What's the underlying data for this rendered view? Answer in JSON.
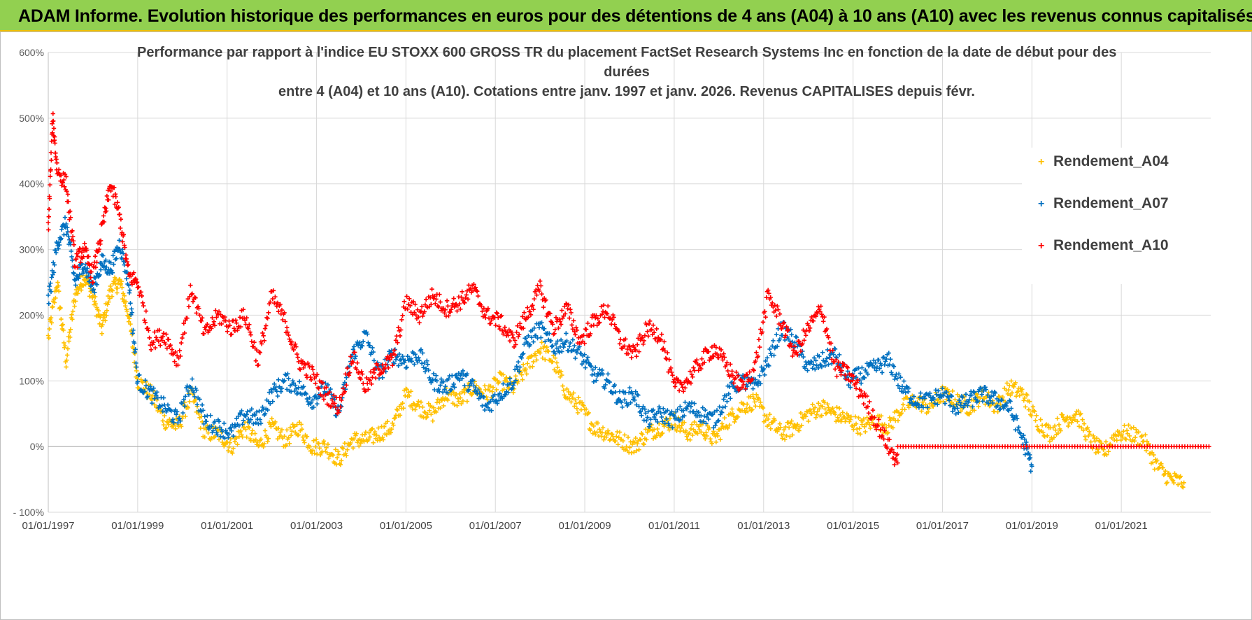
{
  "header": {
    "title": "ADAM Informe. Evolution historique des performances en euros pour des détentions de 4 ans (A04) à 10 ans (A10) avec les revenus connus capitalisés",
    "background": "#92d050",
    "border": "#f0c000"
  },
  "chart_data": {
    "type": "scatter",
    "title_lines": [
      "Performance par rapport à l'indice EU STOXX 600 GROSS TR  du placement FactSet Research Systems Inc en fonction de la date de début pour des",
      "durées",
      "entre 4 (A04) et 10 ans (A10).  Cotations entre janv. 1997 et janv. 2026. Revenus CAPITALISES depuis févr."
    ],
    "xlabel": "",
    "ylabel": "",
    "xlim": [
      1997.0,
      2023.0
    ],
    "ylim": [
      -100,
      600
    ],
    "yticks": [
      -100,
      0,
      100,
      200,
      300,
      400,
      500,
      600
    ],
    "ytick_labels": [
      "- 100%",
      "0%",
      "100%",
      "200%",
      "300%",
      "400%",
      "500%",
      "600%"
    ],
    "xticks": [
      1997,
      1999,
      2001,
      2003,
      2005,
      2007,
      2009,
      2011,
      2013,
      2015,
      2017,
      2019,
      2021
    ],
    "xtick_labels": [
      "01/01/1997",
      "01/01/1999",
      "01/01/2001",
      "01/01/2003",
      "01/01/2005",
      "01/01/2007",
      "01/01/2009",
      "01/01/2011",
      "01/01/2013",
      "01/01/2015",
      "01/01/2017",
      "01/01/2019",
      "01/01/2021"
    ],
    "grid": true,
    "legend_position": "right",
    "series": [
      {
        "name": "Rendement_A04",
        "color": "#ffc000",
        "x": [
          1997.0,
          1997.2,
          1997.4,
          1997.6,
          1997.8,
          1998.0,
          1998.2,
          1998.4,
          1998.6,
          1998.8,
          1999.0,
          1999.3,
          1999.6,
          1999.9,
          2000.2,
          2000.5,
          2000.8,
          2001.1,
          2001.4,
          2001.7,
          2002.0,
          2002.3,
          2002.6,
          2002.9,
          2003.2,
          2003.5,
          2003.8,
          2004.1,
          2004.4,
          2004.7,
          2005.0,
          2005.3,
          2005.6,
          2005.9,
          2006.2,
          2006.5,
          2006.8,
          2007.1,
          2007.4,
          2007.7,
          2008.0,
          2008.3,
          2008.6,
          2008.9,
          2009.2,
          2009.5,
          2009.8,
          2010.1,
          2010.4,
          2010.7,
          2011.0,
          2011.3,
          2011.6,
          2011.9,
          2012.2,
          2012.5,
          2012.8,
          2013.1,
          2013.4,
          2013.7,
          2014.0,
          2014.3,
          2014.6,
          2014.9,
          2015.2,
          2015.5,
          2015.8,
          2016.1,
          2016.4,
          2016.7,
          2017.0,
          2017.3,
          2017.6,
          2017.9,
          2018.2,
          2018.5,
          2018.8,
          2019.1,
          2019.4,
          2019.7,
          2020.0,
          2020.3,
          2020.6,
          2020.9,
          2021.2,
          2021.5,
          2021.8,
          2022.1,
          2022.4
        ],
        "y": [
          165,
          250,
          130,
          230,
          260,
          230,
          180,
          240,
          250,
          200,
          100,
          80,
          40,
          30,
          80,
          20,
          20,
          0,
          30,
          0,
          30,
          10,
          30,
          0,
          0,
          -20,
          10,
          10,
          20,
          30,
          80,
          60,
          50,
          80,
          70,
          90,
          80,
          100,
          90,
          120,
          150,
          130,
          80,
          60,
          30,
          20,
          10,
          0,
          20,
          30,
          40,
          20,
          30,
          10,
          40,
          60,
          70,
          40,
          20,
          30,
          50,
          60,
          50,
          40,
          30,
          40,
          30,
          60,
          70,
          60,
          80,
          70,
          60,
          80,
          60,
          90,
          80,
          40,
          20,
          40,
          50,
          10,
          -10,
          20,
          20,
          10,
          -30,
          -50,
          -55
        ]
      },
      {
        "name": "Rendement_A07",
        "color": "#0070c0",
        "x": [
          1997.0,
          1997.2,
          1997.4,
          1997.6,
          1997.8,
          1998.0,
          1998.2,
          1998.4,
          1998.6,
          1998.8,
          1999.0,
          1999.3,
          1999.6,
          1999.9,
          2000.2,
          2000.5,
          2000.8,
          2001.1,
          2001.4,
          2001.7,
          2002.0,
          2002.3,
          2002.6,
          2002.9,
          2003.2,
          2003.5,
          2003.8,
          2004.1,
          2004.4,
          2004.7,
          2005.0,
          2005.3,
          2005.6,
          2005.9,
          2006.2,
          2006.5,
          2006.8,
          2007.1,
          2007.4,
          2007.7,
          2008.0,
          2008.3,
          2008.6,
          2008.9,
          2009.2,
          2009.5,
          2009.8,
          2010.1,
          2010.4,
          2010.7,
          2011.0,
          2011.3,
          2011.6,
          2011.9,
          2012.2,
          2012.5,
          2012.8,
          2013.1,
          2013.4,
          2013.7,
          2014.0,
          2014.3,
          2014.6,
          2014.9,
          2015.2,
          2015.5,
          2015.8,
          2016.1,
          2016.4,
          2016.7,
          2017.0,
          2017.3,
          2017.6,
          2017.9,
          2018.2,
          2018.5,
          2018.8,
          2019.0
        ],
        "y": [
          220,
          310,
          340,
          250,
          280,
          240,
          280,
          270,
          310,
          250,
          100,
          80,
          60,
          40,
          100,
          40,
          30,
          20,
          50,
          40,
          80,
          100,
          90,
          70,
          90,
          50,
          140,
          170,
          110,
          140,
          130,
          140,
          100,
          90,
          110,
          90,
          60,
          80,
          100,
          160,
          180,
          150,
          160,
          140,
          110,
          100,
          70,
          80,
          40,
          50,
          40,
          60,
          50,
          40,
          80,
          100,
          90,
          130,
          180,
          160,
          120,
          130,
          140,
          100,
          110,
          120,
          130,
          90,
          70,
          70,
          80,
          60,
          70,
          80,
          70,
          60,
          10,
          -30
        ]
      },
      {
        "name": "Rendement_A10",
        "color": "#ff0000",
        "x": [
          1997.0,
          1997.1,
          1997.2,
          1997.4,
          1997.6,
          1997.8,
          1998.0,
          1998.2,
          1998.4,
          1998.6,
          1998.8,
          1999.0,
          1999.3,
          1999.6,
          1999.9,
          2000.2,
          2000.5,
          2000.8,
          2001.1,
          2001.4,
          2001.7,
          2002.0,
          2002.3,
          2002.6,
          2002.9,
          2003.2,
          2003.5,
          2003.8,
          2004.1,
          2004.4,
          2004.7,
          2005.0,
          2005.3,
          2005.6,
          2005.9,
          2006.2,
          2006.5,
          2006.8,
          2007.1,
          2007.4,
          2007.7,
          2008.0,
          2008.3,
          2008.6,
          2008.9,
          2009.2,
          2009.5,
          2009.8,
          2010.1,
          2010.4,
          2010.7,
          2011.0,
          2011.3,
          2011.6,
          2011.9,
          2012.2,
          2012.5,
          2012.8,
          2013.1,
          2013.4,
          2013.7,
          2014.0,
          2014.3,
          2014.6,
          2014.9,
          2015.2,
          2015.5,
          2015.8,
          2016.0
        ],
        "y": [
          330,
          500,
          420,
          400,
          280,
          300,
          260,
          330,
          400,
          350,
          260,
          250,
          160,
          170,
          130,
          240,
          170,
          200,
          180,
          200,
          130,
          230,
          190,
          130,
          110,
          80,
          60,
          140,
          90,
          120,
          130,
          220,
          200,
          230,
          210,
          220,
          240,
          200,
          190,
          160,
          200,
          240,
          180,
          210,
          160,
          190,
          210,
          160,
          140,
          180,
          170,
          90,
          100,
          130,
          150,
          120,
          90,
          120,
          230,
          190,
          140,
          180,
          210,
          120,
          110,
          80,
          40,
          0,
          -25
        ]
      }
    ],
    "a10_zero_from": 2016.0,
    "a10_zero_to": 2023.0,
    "a10_zero_value": 0
  }
}
